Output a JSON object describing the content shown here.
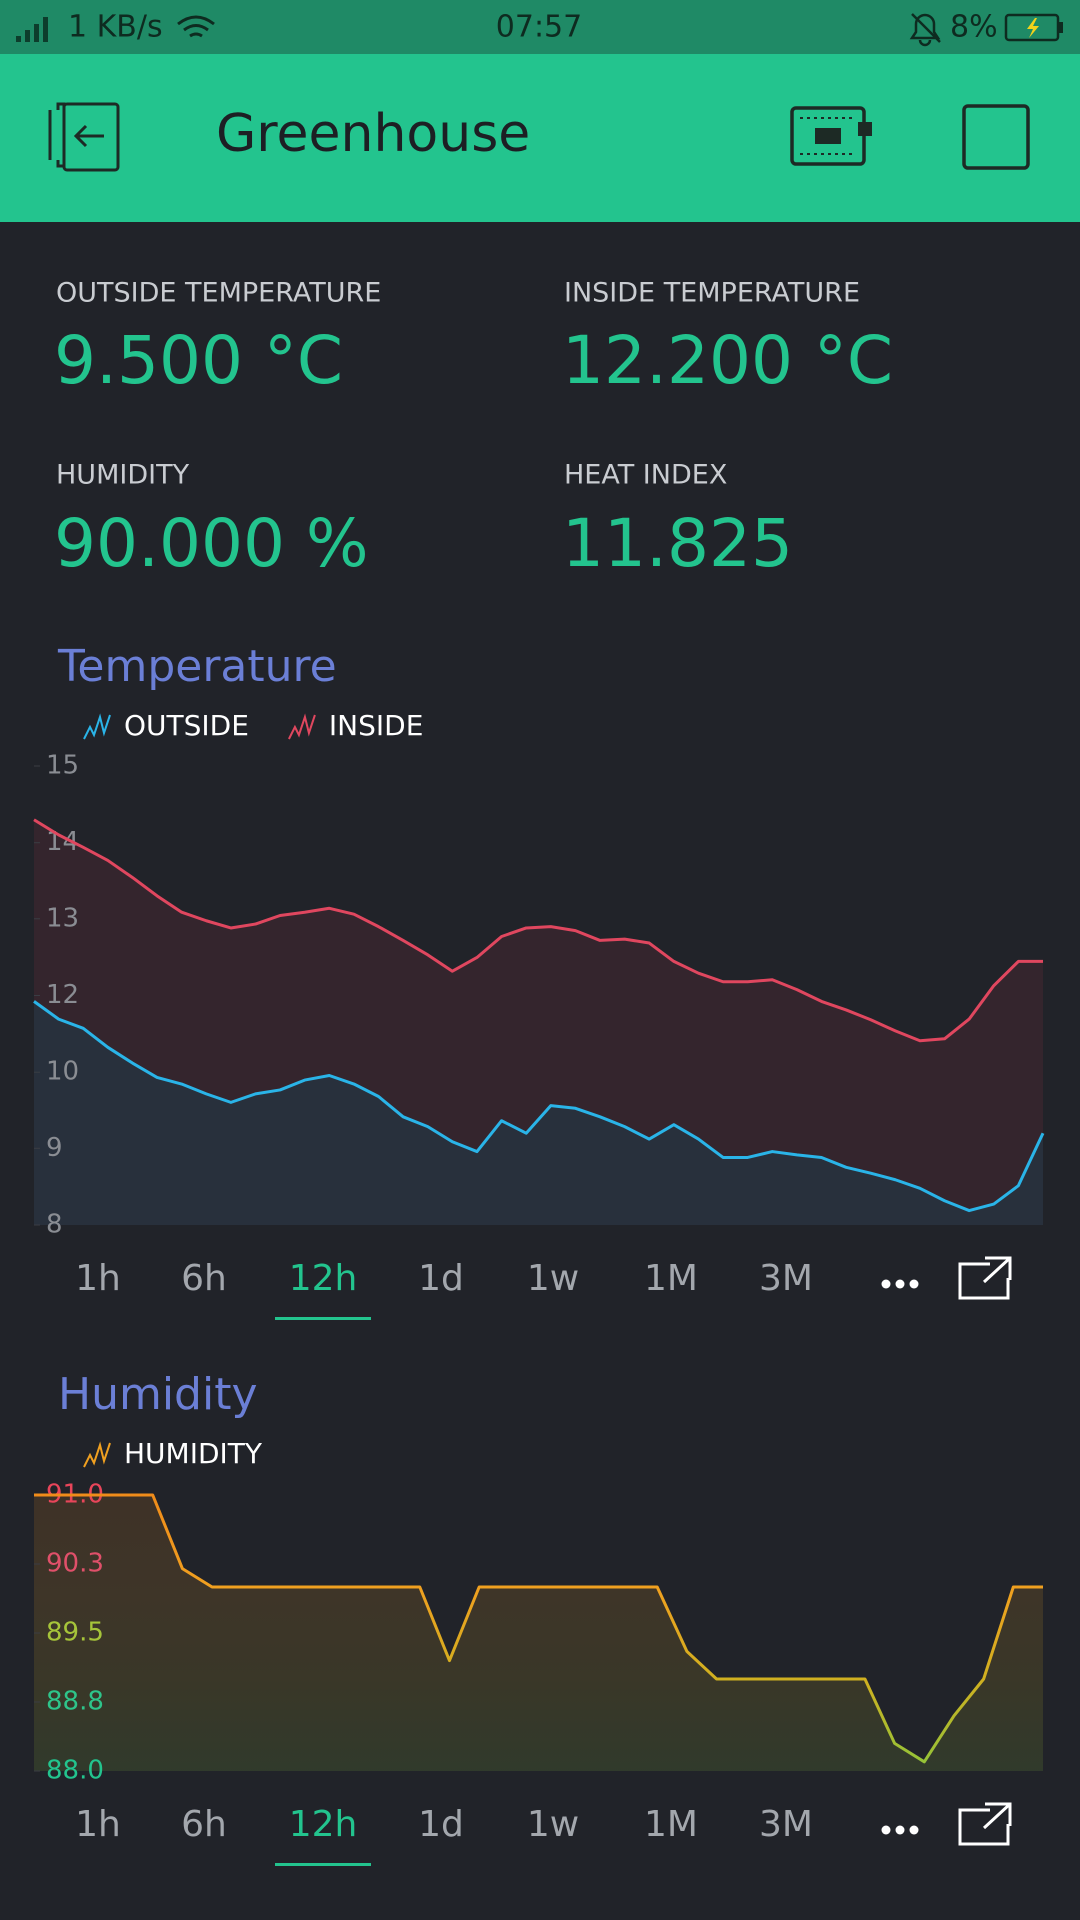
{
  "status_bar": {
    "speed": "1 KB/s",
    "time": "07:57",
    "battery": "8%"
  },
  "header": {
    "title": "Greenhouse"
  },
  "tiles": [
    {
      "label": "OUTSIDE TEMPERATURE",
      "value": "9.500 °C"
    },
    {
      "label": "INSIDE TEMPERATURE",
      "value": "12.200 °C"
    },
    {
      "label": "HUMIDITY",
      "value": "90.000 %"
    },
    {
      "label": "HEAT INDEX",
      "value": "11.825"
    }
  ],
  "chart_data": [
    {
      "type": "line",
      "title": "Temperature",
      "ylim": [
        8,
        15
      ],
      "yticks": [
        8,
        {
          "value": 9.17,
          "label": "9"
        },
        {
          "value": 10.33,
          "label": "10"
        },
        {
          "value": 11.5,
          "label": "12"
        },
        {
          "value": 12.67,
          "label": "13"
        },
        {
          "value": 13.83,
          "label": "14"
        },
        15
      ],
      "tick_color": "#8a8d93",
      "fill": true,
      "series": [
        {
          "name": "INSIDE",
          "color": "#e0475f",
          "fill_color": "#34252d",
          "values": [
            14.18,
            13.95,
            13.76,
            13.56,
            13.3,
            13.02,
            12.77,
            12.64,
            12.53,
            12.59,
            12.72,
            12.77,
            12.83,
            12.74,
            12.55,
            12.34,
            12.12,
            11.87,
            12.08,
            12.4,
            12.53,
            12.55,
            12.49,
            12.34,
            12.36,
            12.3,
            12.02,
            11.84,
            11.71,
            11.71,
            11.74,
            11.59,
            11.41,
            11.28,
            11.13,
            10.96,
            10.81,
            10.84,
            11.14,
            11.65,
            12.02,
            12.02
          ]
        },
        {
          "name": "OUTSIDE",
          "color": "#2ab4e8",
          "fill_color": "#28303c",
          "values": [
            11.41,
            11.14,
            11.0,
            10.71,
            10.47,
            10.25,
            10.15,
            10.0,
            9.87,
            10.0,
            10.06,
            10.21,
            10.28,
            10.15,
            9.96,
            9.65,
            9.5,
            9.27,
            9.12,
            9.59,
            9.4,
            9.82,
            9.78,
            9.65,
            9.5,
            9.31,
            9.53,
            9.31,
            9.03,
            9.03,
            9.12,
            9.07,
            9.03,
            8.88,
            8.79,
            8.69,
            8.56,
            8.37,
            8.22,
            8.32,
            8.6,
            9.4
          ]
        }
      ],
      "ranges": [
        "1h",
        "6h",
        "12h",
        "1d",
        "1w",
        "1M",
        "3M"
      ],
      "selected_range": 2
    },
    {
      "type": "line",
      "title": "Humidity",
      "ylim": [
        88,
        91
      ],
      "yticks": [
        {
          "value": 88,
          "label": "88.0"
        },
        {
          "value": 88.75,
          "label": "88.8"
        },
        {
          "value": 89.5,
          "label": "89.5"
        },
        {
          "value": 90.25,
          "label": "90.3"
        },
        {
          "value": 91,
          "label": "91.0"
        }
      ],
      "tick_colors": [
        "#23c48e",
        "#2ec48a",
        "#a6c43a",
        "#e0506a",
        "#e8455a"
      ],
      "fill": true,
      "series": [
        {
          "name": "HUMIDITY",
          "color": "#f0a020",
          "gradient": [
            "#8fc43a",
            "#d0b020",
            "#f0a020",
            "#f08c1a"
          ],
          "values": [
            91.0,
            91.0,
            91.0,
            91.0,
            91.0,
            90.2,
            90.0,
            90.0,
            90.0,
            90.0,
            90.0,
            90.0,
            90.0,
            90.0,
            89.2,
            90.0,
            90.0,
            90.0,
            90.0,
            90.0,
            90.0,
            90.0,
            89.3,
            89.0,
            89.0,
            89.0,
            89.0,
            89.0,
            89.0,
            88.3,
            88.1,
            88.6,
            89.0,
            90.0,
            90.0
          ]
        }
      ],
      "ranges": [
        "1h",
        "6h",
        "12h",
        "1d",
        "1w",
        "1M",
        "3M"
      ],
      "selected_range": 2
    }
  ]
}
